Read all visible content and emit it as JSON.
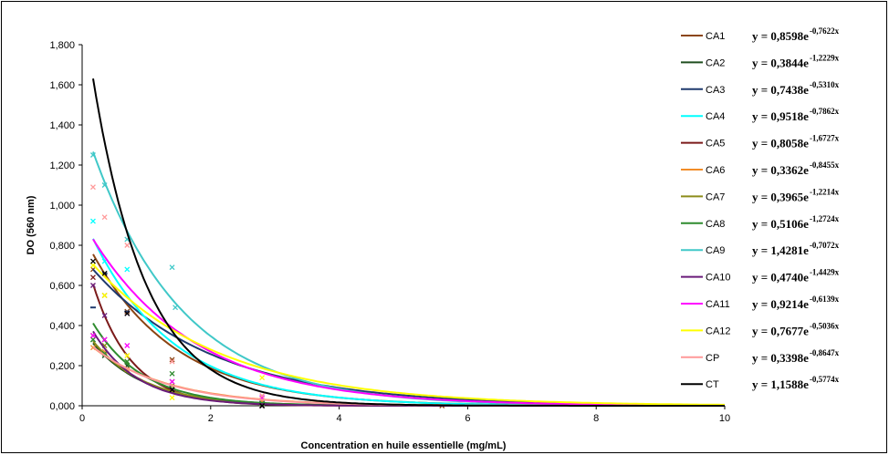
{
  "chart_data": {
    "type": "scatter",
    "title": "",
    "xlabel": "Concentration en huile essentielle (mg/mL)",
    "ylabel": "DO (560 nm)",
    "xlim": [
      0,
      10
    ],
    "ylim": [
      0,
      1.8
    ],
    "x_ticks": [
      "0",
      "2",
      "4",
      "6",
      "8",
      "10"
    ],
    "y_ticks": [
      "0,000",
      "0,200",
      "0,400",
      "0,600",
      "0,800",
      "1,000",
      "1,200",
      "1,400",
      "1,600",
      "1,800"
    ],
    "grid": false,
    "legend_position": "right",
    "trendline": "exponential",
    "series": [
      {
        "name": "CA1",
        "color": "#8B4513",
        "marker": "x",
        "a": 0.8598,
        "b": -0.7622,
        "equation": "y = 0,8598e",
        "exponent": "-0,7622x",
        "points": [
          [
            0.17,
            0.68
          ],
          [
            0.35,
            0.55
          ],
          [
            0.7,
            0.47
          ],
          [
            1.4,
            0.23
          ],
          [
            2.8,
            0.02
          ],
          [
            5.6,
            0.0
          ]
        ]
      },
      {
        "name": "CA2",
        "color": "#1F4E1F",
        "marker": "x",
        "a": 0.3844,
        "b": -1.2229,
        "equation": "y = 0,3844e",
        "exponent": "-1,2229x",
        "points": [
          [
            0.17,
            0.33
          ],
          [
            0.35,
            0.25
          ],
          [
            0.7,
            0.2
          ],
          [
            1.4,
            0.08
          ],
          [
            2.8,
            0.0
          ]
        ]
      },
      {
        "name": "CA3",
        "color": "#1F3A6E",
        "marker": "dash",
        "a": 0.7438,
        "b": -0.531,
        "equation": "y = 0,7438e",
        "exponent": "-0,5310x",
        "points": [
          [
            0.17,
            0.49
          ],
          [
            0.35,
            0.66
          ],
          [
            0.7,
            0.47
          ],
          [
            1.4,
            0.1
          ],
          [
            2.8,
            0.02
          ]
        ]
      },
      {
        "name": "CA4",
        "color": "#00FFFF",
        "marker": "x",
        "a": 0.9518,
        "b": -0.7862,
        "equation": "y = 0,9518e",
        "exponent": "-0,7862x",
        "points": [
          [
            0.17,
            0.92
          ],
          [
            0.35,
            0.72
          ],
          [
            0.7,
            0.68
          ],
          [
            1.4,
            0.12
          ],
          [
            2.8,
            0.02
          ]
        ]
      },
      {
        "name": "CA5",
        "color": "#7B1A1A",
        "marker": "x",
        "a": 0.8058,
        "b": -1.6727,
        "equation": "y = 0,8058e",
        "exponent": "-1,6727x",
        "points": [
          [
            0.17,
            0.64
          ],
          [
            0.35,
            0.33
          ],
          [
            0.7,
            0.22
          ],
          [
            1.4,
            0.08
          ],
          [
            2.8,
            0.0
          ]
        ]
      },
      {
        "name": "CA6",
        "color": "#F28C28",
        "marker": "x",
        "a": 0.3362,
        "b": -0.8455,
        "equation": "y = 0,3362e",
        "exponent": "-0,8455x",
        "points": [
          [
            0.17,
            0.29
          ],
          [
            0.35,
            0.27
          ],
          [
            0.7,
            0.18
          ],
          [
            1.4,
            0.12
          ],
          [
            2.8,
            0.02
          ]
        ]
      },
      {
        "name": "CA7",
        "color": "#8C8C1A",
        "marker": "x",
        "a": 0.3965,
        "b": -1.2214,
        "equation": "y = 0,3965e",
        "exponent": "-1,2214x",
        "points": [
          [
            0.17,
            0.35
          ],
          [
            0.35,
            0.3
          ],
          [
            0.7,
            0.22
          ],
          [
            1.4,
            0.1
          ],
          [
            2.8,
            0.01
          ]
        ]
      },
      {
        "name": "CA8",
        "color": "#2E8B2E",
        "marker": "x",
        "a": 0.5106,
        "b": -1.2724,
        "equation": "y = 0,5106e",
        "exponent": "-1,2724x",
        "points": [
          [
            0.17,
            0.33
          ],
          [
            0.35,
            0.26
          ],
          [
            0.7,
            0.22
          ],
          [
            1.4,
            0.16
          ],
          [
            2.8,
            0.01
          ]
        ]
      },
      {
        "name": "CA9",
        "color": "#40C8C8",
        "marker": "x",
        "a": 1.4281,
        "b": -0.7072,
        "equation": "y = 1,4281e",
        "exponent": "-0,7072x",
        "points": [
          [
            0.17,
            1.25
          ],
          [
            0.35,
            1.1
          ],
          [
            0.7,
            0.83
          ],
          [
            1.4,
            0.69
          ],
          [
            1.45,
            0.49
          ],
          [
            2.8,
            0.04
          ]
        ]
      },
      {
        "name": "CA10",
        "color": "#6A1B7A",
        "marker": "x",
        "a": 0.474,
        "b": -1.4429,
        "equation": "y = 0,4740e",
        "exponent": "-1,4429x",
        "points": [
          [
            0.17,
            0.6
          ],
          [
            0.35,
            0.45
          ],
          [
            0.7,
            0.46
          ],
          [
            1.4,
            0.08
          ],
          [
            2.8,
            0.0
          ]
        ]
      },
      {
        "name": "CA11",
        "color": "#FF00FF",
        "marker": "x",
        "a": 0.9214,
        "b": -0.6139,
        "equation": "y = 0,9214e",
        "exponent": "-0,6139x",
        "points": [
          [
            0.17,
            0.35
          ],
          [
            0.35,
            0.33
          ],
          [
            0.7,
            0.3
          ],
          [
            1.4,
            0.12
          ],
          [
            2.8,
            0.04
          ]
        ]
      },
      {
        "name": "CA12",
        "color": "#FFFF00",
        "marker": "x",
        "a": 0.7677,
        "b": -0.5036,
        "equation": "y = 0,7677e",
        "exponent": "-0,5036x",
        "points": [
          [
            0.17,
            0.7
          ],
          [
            0.35,
            0.55
          ],
          [
            0.7,
            0.25
          ],
          [
            1.4,
            0.04
          ],
          [
            2.8,
            0.14
          ]
        ]
      },
      {
        "name": "CP",
        "color": "#FF9999",
        "marker": "x",
        "a": 0.3398,
        "b": -0.8647,
        "equation": "y = 0,3398e",
        "exponent": "-0,8647x",
        "points": [
          [
            0.17,
            1.09
          ],
          [
            0.35,
            0.94
          ],
          [
            0.7,
            0.8
          ],
          [
            1.4,
            0.22
          ],
          [
            2.8,
            0.05
          ]
        ]
      },
      {
        "name": "CT",
        "color": "#000000",
        "marker": "x",
        "a": 1.1588,
        "b": -0.5774,
        "equation": "y = 1,1588e",
        "exponent": "-0,5774x",
        "points": [
          [
            0.17,
            0.72
          ],
          [
            0.35,
            0.66
          ],
          [
            0.7,
            0.46
          ],
          [
            1.4,
            0.08
          ],
          [
            2.8,
            0.0
          ]
        ]
      }
    ]
  }
}
